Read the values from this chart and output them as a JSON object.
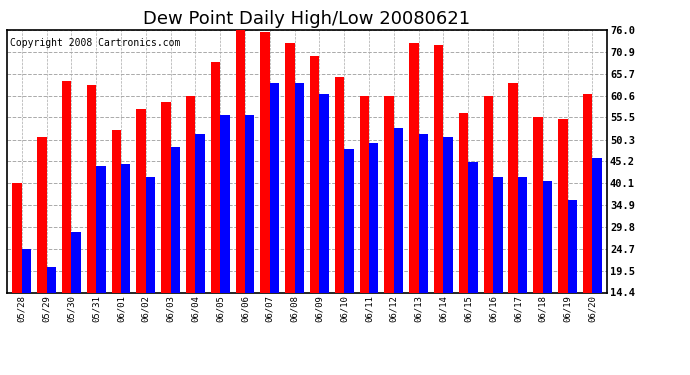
{
  "title": "Dew Point Daily High/Low 20080621",
  "copyright": "Copyright 2008 Cartronics.com",
  "dates": [
    "05/28",
    "05/29",
    "05/30",
    "05/31",
    "06/01",
    "06/02",
    "06/03",
    "06/04",
    "06/05",
    "06/06",
    "06/07",
    "06/08",
    "06/09",
    "06/10",
    "06/11",
    "06/12",
    "06/13",
    "06/14",
    "06/15",
    "06/16",
    "06/17",
    "06/18",
    "06/19",
    "06/20"
  ],
  "highs": [
    40.0,
    51.0,
    64.0,
    63.0,
    52.5,
    57.5,
    59.0,
    60.5,
    68.5,
    76.0,
    75.5,
    73.0,
    70.0,
    65.0,
    60.5,
    60.5,
    73.0,
    72.5,
    56.5,
    60.5,
    63.5,
    55.5,
    55.0,
    61.0
  ],
  "lows": [
    24.5,
    20.5,
    28.5,
    44.0,
    44.5,
    41.5,
    48.5,
    51.5,
    56.0,
    56.0,
    63.5,
    63.5,
    61.0,
    48.0,
    49.5,
    53.0,
    51.5,
    51.0,
    45.0,
    41.5,
    41.5,
    40.5,
    36.0,
    46.0
  ],
  "high_color": "#ff0000",
  "low_color": "#0000ff",
  "bg_color": "#ffffff",
  "plot_bg_color": "#ffffff",
  "grid_color": "#aaaaaa",
  "ylim_min": 14.4,
  "ylim_max": 76.0,
  "yticks": [
    14.4,
    19.5,
    24.7,
    29.8,
    34.9,
    40.1,
    45.2,
    50.3,
    55.5,
    60.6,
    65.7,
    70.9,
    76.0
  ],
  "title_fontsize": 13,
  "copyright_fontsize": 7,
  "bar_width": 0.38
}
